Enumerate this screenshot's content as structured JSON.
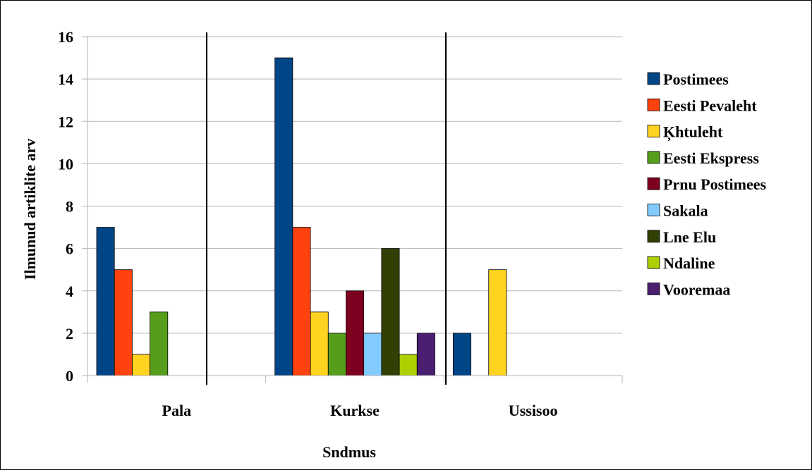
{
  "chart_data": {
    "type": "bar",
    "title": "",
    "xlabel": "Sndmus",
    "ylabel": "Ilmunud artiklite arv",
    "ylim": [
      0,
      16
    ],
    "yticks": [
      0,
      2,
      4,
      6,
      8,
      10,
      12,
      14,
      16
    ],
    "grid": true,
    "legend_position": "right",
    "categories": [
      "Pala",
      "Kurkse",
      "Ussisoo"
    ],
    "series": [
      {
        "name": "Postimees",
        "color": "#004586",
        "values": [
          7,
          15,
          2
        ]
      },
      {
        "name": "Eesti Pevaleht",
        "color": "#FF420E",
        "values": [
          5,
          7,
          0
        ]
      },
      {
        "name": "Ķhtuleht",
        "color": "#FFD320",
        "values": [
          1,
          3,
          5
        ]
      },
      {
        "name": "Eesti Ekspress",
        "color": "#579D1C",
        "values": [
          3,
          2,
          0
        ]
      },
      {
        "name": "Prnu Postimees",
        "color": "#7E0021",
        "values": [
          0,
          4,
          0
        ]
      },
      {
        "name": "Sakala",
        "color": "#83CAFF",
        "values": [
          0,
          2,
          0
        ]
      },
      {
        "name": "Lne Elu",
        "color": "#314004",
        "values": [
          0,
          6,
          0
        ]
      },
      {
        "name": "Ndaline",
        "color": "#AECF00",
        "values": [
          0,
          1,
          0
        ]
      },
      {
        "name": "Vooremaa",
        "color": "#4B1F6F",
        "values": [
          0,
          2,
          0
        ]
      }
    ]
  }
}
